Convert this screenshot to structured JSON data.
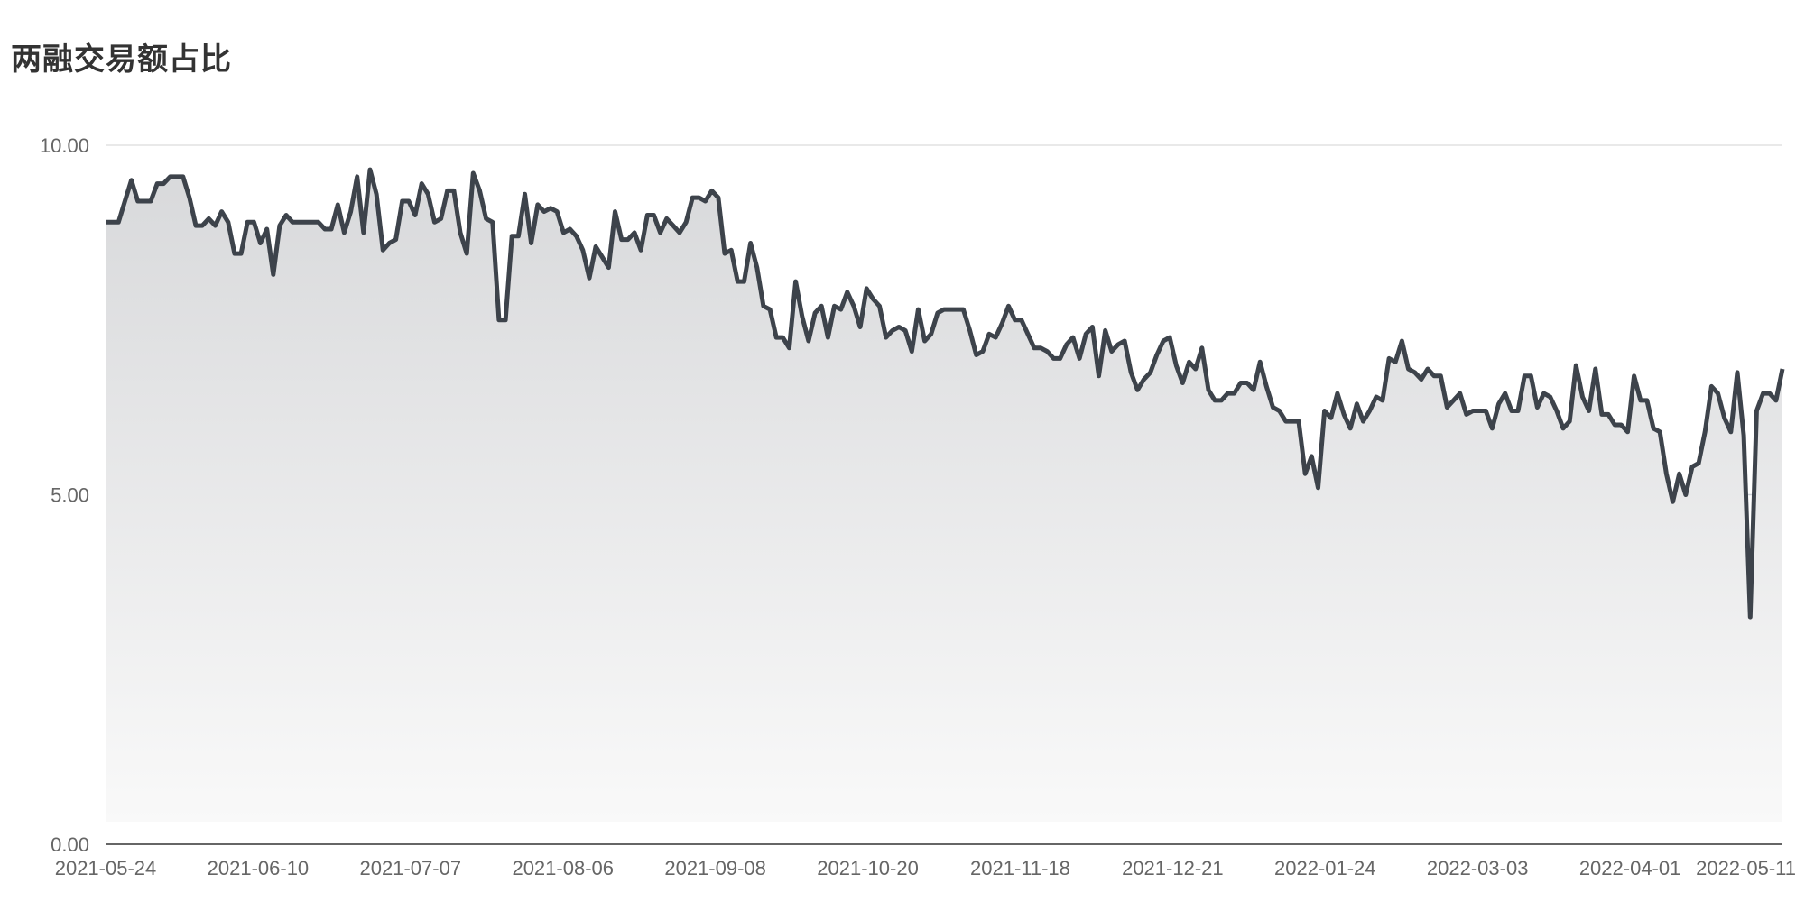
{
  "chart_data": {
    "type": "area",
    "title": "两融交易额占比",
    "xlabel": "",
    "ylabel": "",
    "ylim": [
      0,
      10
    ],
    "y_ticks": [
      "0.00",
      "5.00",
      "10.00"
    ],
    "x_ticks": [
      "2021-05-24",
      "2021-06-10",
      "2021-07-07",
      "2021-08-06",
      "2021-09-08",
      "2021-10-20",
      "2021-11-18",
      "2021-12-21",
      "2022-01-24",
      "2022-03-03",
      "2022-04-01",
      "2022-05-11"
    ],
    "x_start": "2021-05-24",
    "x_end": "2022-05-11",
    "grid": true,
    "series": [
      {
        "color": "#3d434b",
        "values": [
          8.9,
          8.9,
          8.9,
          9.2,
          9.5,
          9.2,
          9.2,
          9.2,
          9.45,
          9.45,
          9.55,
          9.55,
          9.55,
          9.25,
          8.85,
          8.85,
          8.95,
          8.85,
          9.05,
          8.9,
          8.45,
          8.45,
          8.9,
          8.9,
          8.6,
          8.8,
          8.15,
          8.85,
          9.0,
          8.9,
          8.9,
          8.9,
          8.9,
          8.9,
          8.8,
          8.8,
          9.15,
          8.75,
          9.05,
          9.55,
          8.75,
          9.65,
          9.3,
          8.5,
          8.6,
          8.65,
          9.2,
          9.2,
          9.0,
          9.45,
          9.3,
          8.9,
          8.95,
          9.35,
          9.35,
          8.75,
          8.45,
          9.6,
          9.35,
          8.95,
          8.9,
          7.5,
          7.5,
          8.7,
          8.7,
          9.3,
          8.6,
          9.15,
          9.05,
          9.1,
          9.05,
          8.75,
          8.8,
          8.7,
          8.5,
          8.1,
          8.55,
          8.4,
          8.25,
          9.05,
          8.65,
          8.65,
          8.75,
          8.5,
          9.0,
          9.0,
          8.75,
          8.95,
          8.85,
          8.75,
          8.9,
          9.25,
          9.25,
          9.2,
          9.35,
          9.25,
          8.45,
          8.5,
          8.05,
          8.05,
          8.6,
          8.25,
          7.7,
          7.65,
          7.25,
          7.25,
          7.1,
          8.05,
          7.55,
          7.2,
          7.6,
          7.7,
          7.25,
          7.7,
          7.65,
          7.9,
          7.7,
          7.4,
          7.95,
          7.8,
          7.7,
          7.25,
          7.35,
          7.4,
          7.35,
          7.05,
          7.65,
          7.2,
          7.3,
          7.6,
          7.65,
          7.65,
          7.65,
          7.65,
          7.35,
          7.0,
          7.05,
          7.3,
          7.25,
          7.45,
          7.7,
          7.5,
          7.5,
          7.3,
          7.1,
          7.1,
          7.05,
          6.95,
          6.95,
          7.15,
          7.25,
          6.95,
          7.3,
          7.4,
          6.7,
          7.35,
          7.05,
          7.15,
          7.2,
          6.75,
          6.5,
          6.65,
          6.75,
          7.0,
          7.2,
          7.25,
          6.85,
          6.6,
          6.9,
          6.8,
          7.1,
          6.5,
          6.35,
          6.35,
          6.45,
          6.45,
          6.6,
          6.6,
          6.5,
          6.9,
          6.55,
          6.25,
          6.2,
          6.05,
          6.05,
          6.05,
          5.3,
          5.55,
          5.1,
          6.2,
          6.1,
          6.45,
          6.15,
          5.95,
          6.3,
          6.05,
          6.2,
          6.4,
          6.35,
          6.95,
          6.9,
          7.2,
          6.8,
          6.75,
          6.65,
          6.8,
          6.7,
          6.7,
          6.25,
          6.35,
          6.45,
          6.15,
          6.2,
          6.2,
          6.2,
          5.95,
          6.3,
          6.45,
          6.2,
          6.2,
          6.7,
          6.7,
          6.25,
          6.45,
          6.4,
          6.2,
          5.95,
          6.05,
          6.85,
          6.4,
          6.2,
          6.8,
          6.15,
          6.15,
          6.0,
          6.0,
          5.9,
          6.7,
          6.35,
          6.35,
          5.95,
          5.9,
          5.3,
          4.9,
          5.3,
          5.0,
          5.4,
          5.45,
          5.9,
          6.55,
          6.45,
          6.1,
          5.9,
          6.75,
          5.85,
          3.25,
          6.2,
          6.45,
          6.45,
          6.35,
          6.8
        ]
      }
    ]
  }
}
